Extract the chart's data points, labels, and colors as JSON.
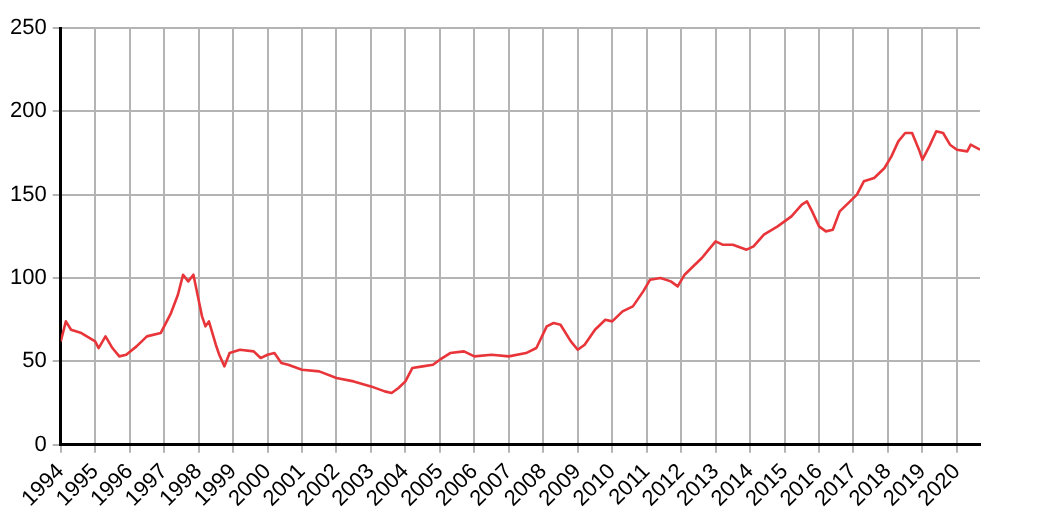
{
  "chart_data": {
    "type": "line",
    "x": [
      1994.0,
      1994.15,
      1994.3,
      1994.6,
      1995.0,
      1995.1,
      1995.3,
      1995.5,
      1995.7,
      1995.9,
      1996.2,
      1996.5,
      1996.9,
      1997.2,
      1997.4,
      1997.5,
      1997.55,
      1997.7,
      1997.85,
      1998.0,
      1998.1,
      1998.2,
      1998.3,
      1998.5,
      1998.6,
      1998.75,
      1998.9,
      1999.2,
      1999.6,
      1999.8,
      2000.0,
      2000.2,
      2000.4,
      2000.6,
      2001.0,
      2001.5,
      2002.0,
      2002.5,
      2003.0,
      2003.4,
      2003.6,
      2003.8,
      2004.0,
      2004.2,
      2004.5,
      2004.8,
      2005.0,
      2005.3,
      2005.7,
      2006.0,
      2006.5,
      2007.0,
      2007.5,
      2007.8,
      2008.1,
      2008.3,
      2008.5,
      2008.8,
      2009.0,
      2009.2,
      2009.5,
      2009.8,
      2010.0,
      2010.3,
      2010.6,
      2010.9,
      2011.1,
      2011.4,
      2011.7,
      2011.9,
      2012.1,
      2012.3,
      2012.6,
      2012.8,
      2013.0,
      2013.2,
      2013.5,
      2013.9,
      2014.1,
      2014.4,
      2014.8,
      2015.2,
      2015.5,
      2015.65,
      2015.8,
      2016.0,
      2016.2,
      2016.4,
      2016.6,
      2016.9,
      2017.1,
      2017.3,
      2017.6,
      2017.9,
      2018.1,
      2018.3,
      2018.5,
      2018.7,
      2018.9,
      2019.0,
      2019.2,
      2019.4,
      2019.6,
      2019.8,
      2020.0,
      2020.3,
      2020.4,
      2020.67
    ],
    "series": [
      {
        "color": "#e8353a",
        "values": [
          62,
          74,
          69,
          67,
          62,
          58,
          65,
          58,
          53,
          54,
          59,
          65,
          67,
          79,
          90,
          98,
          102,
          98,
          102,
          87,
          77,
          71,
          74,
          60,
          54,
          47,
          55,
          57,
          56,
          52,
          54,
          55,
          49,
          48,
          45,
          44,
          40,
          38,
          35,
          32,
          31,
          34,
          38,
          46,
          47,
          48,
          51,
          55,
          56,
          53,
          54,
          53,
          55,
          58,
          71,
          73,
          72,
          62,
          57,
          60,
          69,
          75,
          74,
          80,
          83,
          92,
          99,
          100,
          98,
          95,
          102,
          106,
          112,
          117,
          122,
          120,
          120,
          117,
          119,
          126,
          131,
          137,
          144,
          146,
          140,
          131,
          128,
          129,
          140,
          146,
          150,
          158,
          160,
          166,
          173,
          182,
          187,
          187,
          177,
          171,
          179,
          188,
          187,
          180,
          177,
          176,
          180,
          177
        ]
      }
    ],
    "xlim": [
      1994,
      2020.67
    ],
    "xticks": [
      1994,
      1995,
      1996,
      1997,
      1998,
      1999,
      2000,
      2001,
      2002,
      2003,
      2004,
      2005,
      2006,
      2007,
      2008,
      2009,
      2010,
      2011,
      2012,
      2013,
      2014,
      2015,
      2016,
      2017,
      2018,
      2019,
      2020
    ],
    "ylim": [
      0,
      250
    ],
    "yticks": [
      0,
      50,
      100,
      150,
      200,
      250
    ],
    "grid": true,
    "legend": false,
    "marker": "none",
    "line_style": "solid"
  }
}
